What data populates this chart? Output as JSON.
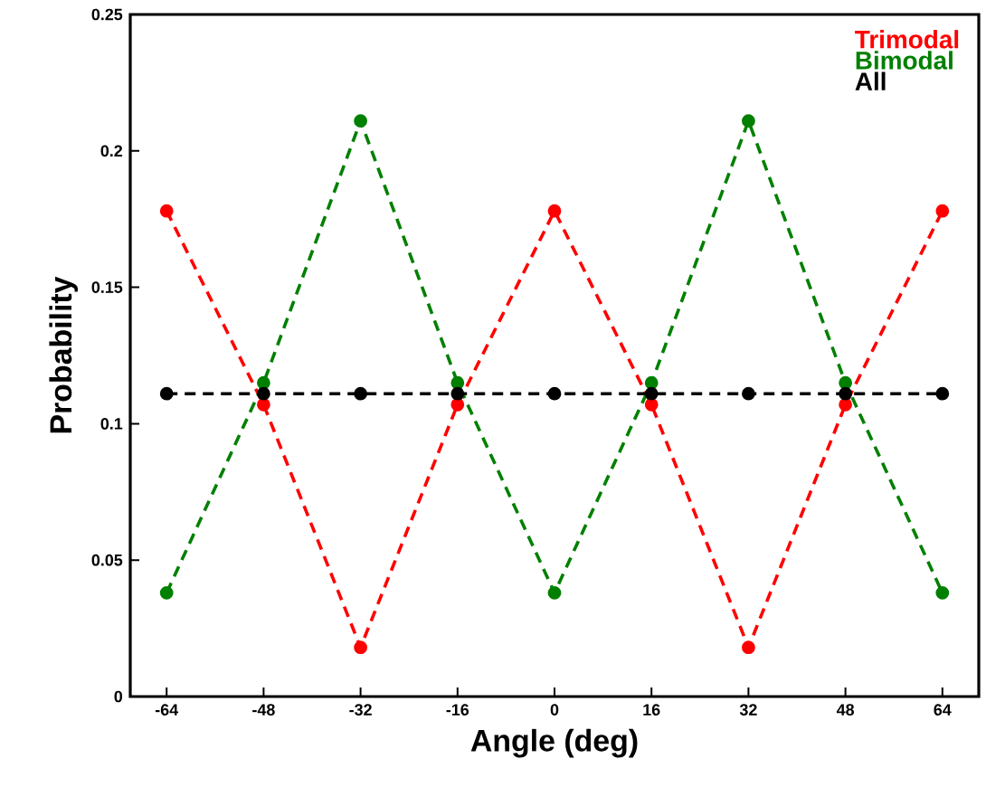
{
  "chart_data": {
    "type": "line",
    "xlabel": "Angle (deg)",
    "ylabel": "Probability",
    "x": [
      -64,
      -48,
      -32,
      -16,
      0,
      16,
      32,
      48,
      64
    ],
    "series": [
      {
        "name": "Trimodal",
        "color": "#ff0000",
        "values": [
          0.178,
          0.107,
          0.018,
          0.107,
          0.178,
          0.107,
          0.018,
          0.107,
          0.178
        ]
      },
      {
        "name": "Bimodal",
        "color": "#008000",
        "values": [
          0.038,
          0.115,
          0.211,
          0.115,
          0.038,
          0.115,
          0.211,
          0.115,
          0.038
        ]
      },
      {
        "name": "All",
        "color": "#000000",
        "values": [
          0.111,
          0.111,
          0.111,
          0.111,
          0.111,
          0.111,
          0.111,
          0.111,
          0.111
        ]
      }
    ],
    "xlim": [
      -70,
      70
    ],
    "xticks": [
      -64,
      -48,
      -32,
      -16,
      0,
      16,
      32,
      48,
      64
    ],
    "ylim": [
      0,
      0.25
    ],
    "yticks": [
      0,
      0.05,
      0.1,
      0.15,
      0.2,
      0.25
    ],
    "legend": "top right",
    "marker": "circle",
    "line_style": "dashed",
    "grid": false
  }
}
